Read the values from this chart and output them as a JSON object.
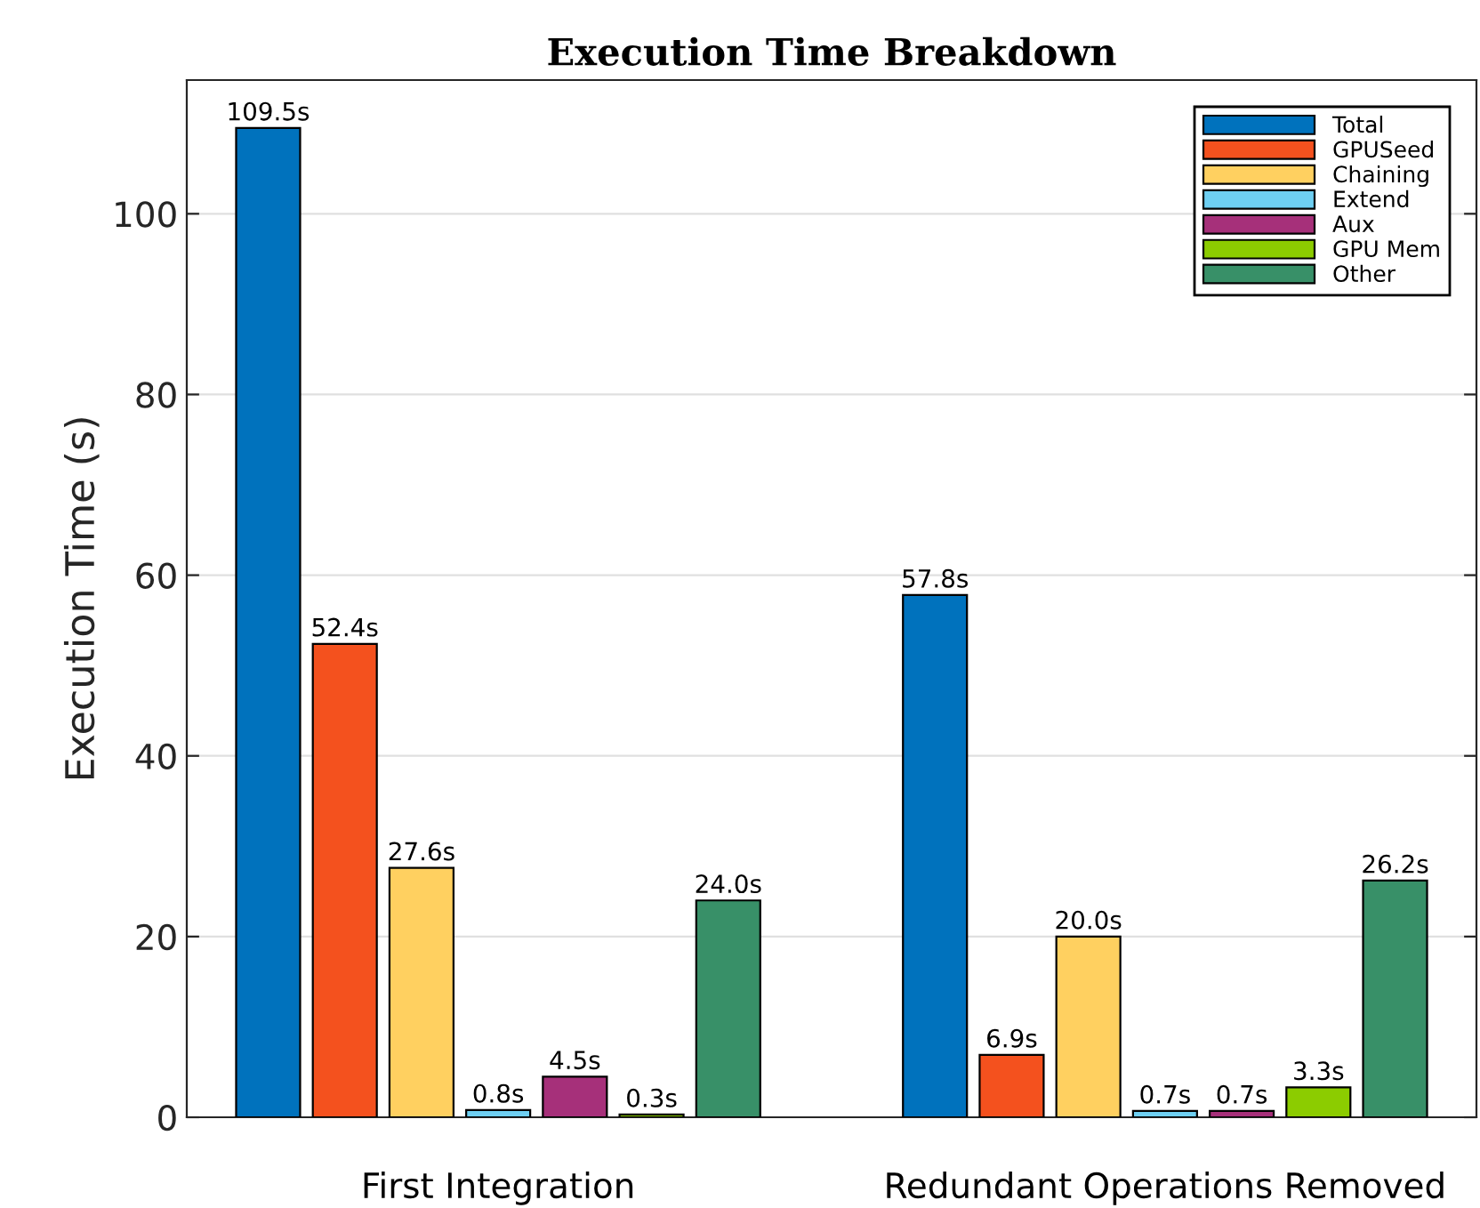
{
  "chart_data": {
    "type": "bar",
    "title": "Execution Time Breakdown",
    "ylabel": "Execution Time (s)",
    "categories": [
      "First Integration",
      "Redundant Operations Removed"
    ],
    "series": [
      {
        "name": "Total",
        "color": "#0072bd",
        "values": [
          109.5,
          57.8
        ],
        "value_labels": [
          "109.5s",
          "57.8s"
        ]
      },
      {
        "name": "GPUSeed",
        "color": "#f4511e",
        "values": [
          52.4,
          6.9
        ],
        "value_labels": [
          "52.4s",
          "6.9s"
        ]
      },
      {
        "name": "Chaining",
        "color": "#ffd060",
        "values": [
          27.6,
          20.0
        ],
        "value_labels": [
          "27.6s",
          "20.0s"
        ]
      },
      {
        "name": "Extend",
        "color": "#6ecff2",
        "values": [
          0.8,
          0.7
        ],
        "value_labels": [
          "0.8s",
          "0.7s"
        ]
      },
      {
        "name": "Aux",
        "color": "#a6307a",
        "values": [
          4.5,
          0.7
        ],
        "value_labels": [
          "4.5s",
          "0.7s"
        ]
      },
      {
        "name": "GPU Mem",
        "color": "#8ccc00",
        "values": [
          0.3,
          3.3
        ],
        "value_labels": [
          "0.3s",
          "3.3s"
        ]
      },
      {
        "name": "Other",
        "color": "#389068",
        "values": [
          24.0,
          26.2
        ],
        "value_labels": [
          "24.0s",
          "26.2s"
        ]
      }
    ],
    "ylim": [
      0,
      114.8
    ],
    "yticks": [
      0,
      20,
      40,
      60,
      80,
      100
    ],
    "grid": "y",
    "legend": "top right"
  }
}
